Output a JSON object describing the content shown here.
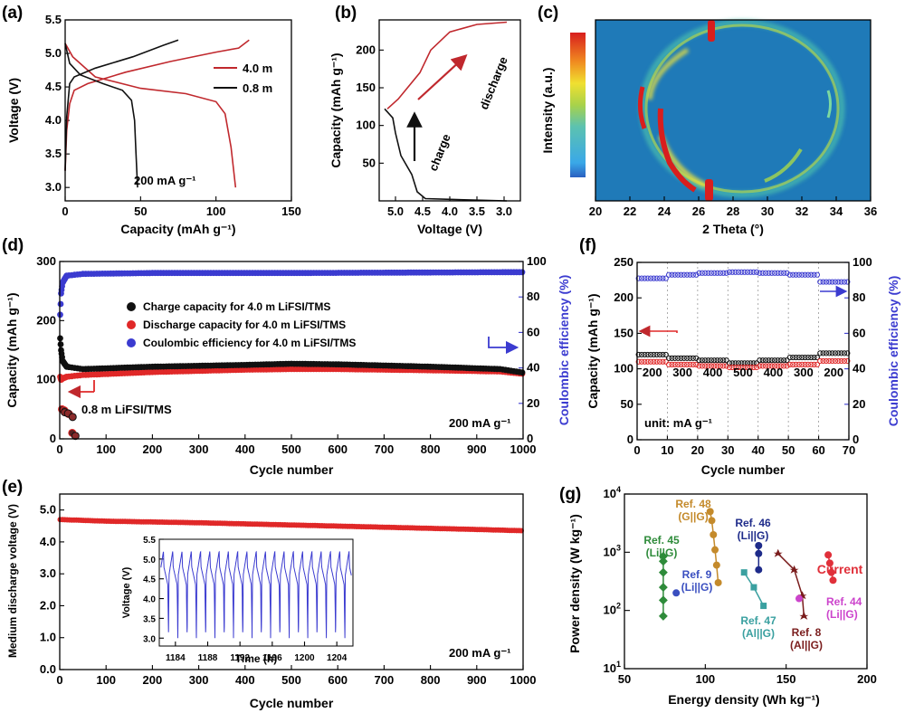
{
  "panels": {
    "a": {
      "label": "(a)",
      "chart_data": {
        "type": "line",
        "xlabel": "Capacity (mAh g⁻¹)",
        "ylabel": "Voltage (V)",
        "xlim": [
          0,
          150
        ],
        "ylim": [
          2.8,
          5.5
        ],
        "xticks": [
          0,
          50,
          100,
          150
        ],
        "yticks": [
          3.0,
          3.5,
          4.0,
          4.5,
          5.0,
          5.5
        ],
        "annotation": "200 mA g⁻¹",
        "series": [
          {
            "name": "4.0 m",
            "color": "#c0282d",
            "charge": [
              [
                0,
                3.25
              ],
              [
                1,
                3.85
              ],
              [
                3,
                4.25
              ],
              [
                6,
                4.45
              ],
              [
                15,
                4.55
              ],
              [
                40,
                4.72
              ],
              [
                70,
                4.88
              ],
              [
                100,
                5.02
              ],
              [
                115,
                5.08
              ],
              [
                122,
                5.2
              ]
            ],
            "discharge": [
              [
                0,
                5.15
              ],
              [
                5,
                4.95
              ],
              [
                20,
                4.65
              ],
              [
                50,
                4.48
              ],
              [
                80,
                4.4
              ],
              [
                100,
                4.28
              ],
              [
                106,
                4.1
              ],
              [
                110,
                3.6
              ],
              [
                113,
                3.0
              ]
            ]
          },
          {
            "name": "0.8 m",
            "color": "#111111",
            "charge": [
              [
                0,
                3.25
              ],
              [
                1,
                4.05
              ],
              [
                3,
                4.55
              ],
              [
                6,
                4.65
              ],
              [
                20,
                4.78
              ],
              [
                45,
                4.95
              ],
              [
                65,
                5.12
              ],
              [
                75,
                5.2
              ]
            ],
            "discharge": [
              [
                0,
                5.15
              ],
              [
                3,
                4.85
              ],
              [
                10,
                4.68
              ],
              [
                25,
                4.55
              ],
              [
                38,
                4.45
              ],
              [
                44,
                4.3
              ],
              [
                46,
                4.0
              ],
              [
                47,
                3.5
              ],
              [
                48,
                3.0
              ]
            ]
          }
        ]
      }
    },
    "b": {
      "label": "(b)",
      "chart_data": {
        "type": "line",
        "xlabel": "Voltage (V)",
        "ylabel": "Capacity (mAh g⁻¹)",
        "xlim": [
          5.3,
          2.7
        ],
        "ylim": [
          0,
          240
        ],
        "xticks": [
          5.0,
          4.5,
          4.0,
          3.5,
          3.0
        ],
        "yticks": [
          50,
          100,
          150,
          200
        ],
        "arrows": [
          "charge",
          "discharge"
        ],
        "series": [
          {
            "name": "charge",
            "color": "#111111",
            "points": [
              [
                2.95,
                0
              ],
              [
                3.5,
                1
              ],
              [
                4.0,
                2
              ],
              [
                4.45,
                3
              ],
              [
                4.6,
                12
              ],
              [
                4.7,
                35
              ],
              [
                4.9,
                60
              ],
              [
                5.0,
                90
              ],
              [
                5.05,
                110
              ],
              [
                5.2,
                122
              ]
            ]
          },
          {
            "name": "discharge",
            "color": "#c0282d",
            "points": [
              [
                5.15,
                122
              ],
              [
                4.95,
                135
              ],
              [
                4.55,
                170
              ],
              [
                4.35,
                200
              ],
              [
                4.0,
                224
              ],
              [
                3.5,
                234
              ],
              [
                2.95,
                237
              ]
            ]
          }
        ]
      }
    },
    "c": {
      "label": "(c)",
      "chart_data": {
        "type": "heatmap",
        "xlabel": "2 Theta (°)",
        "ylabel": "Intensity (a.u.)",
        "xlim": [
          20,
          36
        ],
        "xticks": [
          20,
          22,
          24,
          26,
          28,
          30,
          32,
          34,
          36
        ],
        "ring_center_x": 29.0,
        "peak_positions": [
          22.6,
          23.8,
          26.8,
          34.0
        ]
      }
    },
    "d": {
      "label": "(d)",
      "chart_data": {
        "type": "scatter",
        "xlabel": "Cycle number",
        "ylabel": "Capacity (mAh g⁻¹)",
        "y2label": "Coulombic efficiency (%)",
        "xlim": [
          0,
          1000
        ],
        "ylim": [
          0,
          300
        ],
        "y2lim": [
          0,
          100
        ],
        "xticks": [
          0,
          100,
          200,
          300,
          400,
          500,
          600,
          700,
          800,
          900,
          1000
        ],
        "yticks": [
          0,
          100,
          200,
          300
        ],
        "y2ticks": [
          0,
          20,
          40,
          60,
          80,
          100
        ],
        "legend": [
          "Charge capacity for 4.0 m LiFSI/TMS",
          "Discharge capacity for 4.0 m LiFSI/TMS",
          "Coulombic efficiency for 4.0 m LiFSI/TMS"
        ],
        "annotations": [
          "0.8 m LiFSI/TMS",
          "200 mA g⁻¹"
        ],
        "charge": [
          [
            1,
            170
          ],
          [
            3,
            150
          ],
          [
            6,
            132
          ],
          [
            15,
            122
          ],
          [
            50,
            118
          ],
          [
            200,
            122
          ],
          [
            400,
            125
          ],
          [
            500,
            127
          ],
          [
            600,
            126
          ],
          [
            800,
            122
          ],
          [
            950,
            118
          ],
          [
            1000,
            112
          ]
        ],
        "discharge": [
          [
            1,
            105
          ],
          [
            3,
            100
          ],
          [
            6,
            102
          ],
          [
            15,
            105
          ],
          [
            50,
            108
          ],
          [
            200,
            113
          ],
          [
            400,
            117
          ],
          [
            500,
            118
          ],
          [
            600,
            118
          ],
          [
            800,
            116
          ],
          [
            950,
            114
          ],
          [
            1000,
            110
          ]
        ],
        "ce": [
          [
            1,
            70
          ],
          [
            3,
            82
          ],
          [
            6,
            88
          ],
          [
            15,
            92
          ],
          [
            50,
            93
          ],
          [
            200,
            93.5
          ],
          [
            500,
            93.5
          ],
          [
            800,
            93.8
          ],
          [
            1000,
            94
          ]
        ],
        "low_conc_charge": [
          [
            5,
            50
          ],
          [
            10,
            48
          ],
          [
            20,
            42
          ],
          [
            27,
            10
          ]
        ],
        "low_conc_discharge": [
          [
            5,
            45
          ],
          [
            12,
            43
          ],
          [
            22,
            37
          ],
          [
            28,
            5
          ]
        ]
      }
    },
    "e": {
      "label": "(e)",
      "chart_data": {
        "type": "scatter",
        "xlabel": "Cycle number",
        "ylabel": "Medium discharge voltage (V)",
        "xlim": [
          0,
          1000
        ],
        "ylim": [
          0,
          5.5
        ],
        "xticks": [
          0,
          100,
          200,
          300,
          400,
          500,
          600,
          700,
          800,
          900,
          1000
        ],
        "yticks": [
          0.0,
          1.0,
          2.0,
          3.0,
          4.0,
          5.0
        ],
        "annotation": "200 mA g⁻¹",
        "points": [
          [
            1,
            4.7
          ],
          [
            100,
            4.65
          ],
          [
            300,
            4.6
          ],
          [
            500,
            4.53
          ],
          [
            700,
            4.46
          ],
          [
            900,
            4.39
          ],
          [
            1000,
            4.35
          ]
        ],
        "inset": {
          "xlabel": "Time (h)",
          "ylabel": "Voltage (V)",
          "xlim": [
            1182,
            1206
          ],
          "ylim": [
            2.8,
            5.5
          ],
          "xticks": [
            1184,
            1188,
            1192,
            1196,
            1200,
            1204
          ],
          "yticks": [
            3.0,
            3.5,
            4.0,
            4.5,
            5.0,
            5.5
          ],
          "cycle_period_h": 1.15,
          "v_min": 3.0,
          "v_max": 5.2
        }
      }
    },
    "f": {
      "label": "(f)",
      "chart_data": {
        "type": "scatter",
        "xlabel": "Cycle number",
        "ylabel": "Capacity (mAh g⁻¹)",
        "y2label": "Coulombic efficiency (%)",
        "xlim": [
          0,
          70
        ],
        "ylim": [
          0,
          250
        ],
        "y2lim": [
          0,
          100
        ],
        "xticks": [
          0,
          10,
          20,
          30,
          40,
          50,
          60,
          70
        ],
        "yticks": [
          0,
          50,
          100,
          150,
          200,
          250
        ],
        "y2ticks": [
          0,
          20,
          40,
          60,
          80,
          100
        ],
        "unit_label": "unit: mA g⁻¹",
        "rate_labels": [
          "200",
          "300",
          "400",
          "500",
          "400",
          "300",
          "200"
        ],
        "segments": [
          {
            "x": [
              1,
              10
            ],
            "charge": 120,
            "discharge": 110,
            "ce": 91
          },
          {
            "x": [
              11,
              20
            ],
            "charge": 115,
            "discharge": 106,
            "ce": 93
          },
          {
            "x": [
              21,
              30
            ],
            "charge": 112,
            "discharge": 104,
            "ce": 94
          },
          {
            "x": [
              31,
              40
            ],
            "charge": 108,
            "discharge": 102,
            "ce": 94.5
          },
          {
            "x": [
              41,
              50
            ],
            "charge": 112,
            "discharge": 104,
            "ce": 94
          },
          {
            "x": [
              51,
              60
            ],
            "charge": 116,
            "discharge": 106,
            "ce": 93
          },
          {
            "x": [
              61,
              70
            ],
            "charge": 122,
            "discharge": 111,
            "ce": 89
          }
        ]
      }
    },
    "g": {
      "label": "(g)",
      "chart_data": {
        "type": "scatter",
        "xlabel": "Energy density (Wh kg⁻¹)",
        "ylabel": "Power density (W kg⁻¹)",
        "xlim": [
          50,
          200
        ],
        "ylog": true,
        "ylim": [
          10,
          10000
        ],
        "xticks": [
          50,
          100,
          150,
          200
        ],
        "series": [
          {
            "name": "Ref. 45 (Li||G)",
            "color": "#2e8b3a",
            "points": [
              [
                74,
                850
              ],
              [
                74,
                700
              ],
              [
                74,
                450
              ],
              [
                74,
                250
              ],
              [
                74,
                150
              ],
              [
                74,
                80
              ]
            ]
          },
          {
            "name": "Ref. 9 (Li||G)",
            "color": "#3a4fc0",
            "points": [
              [
                82,
                200
              ]
            ]
          },
          {
            "name": "Ref. 48 (G||G)",
            "color": "#c48a2b",
            "points": [
              [
                103,
                5000
              ],
              [
                104,
                3500
              ],
              [
                105,
                2000
              ],
              [
                106,
                1100
              ],
              [
                107,
                600
              ],
              [
                108,
                300
              ]
            ]
          },
          {
            "name": "Ref. 46 (Li||G)",
            "color": "#1e2b8a",
            "points": [
              [
                133,
                1300
              ],
              [
                133,
                950
              ],
              [
                133,
                500
              ]
            ]
          },
          {
            "name": "Ref. 47 (Al||G)",
            "color": "#3aa0a0",
            "points": [
              [
                124,
                450
              ],
              [
                130,
                250
              ],
              [
                136,
                120
              ]
            ]
          },
          {
            "name": "Ref. 8 (Al||G)",
            "color": "#7a1d1d",
            "points": [
              [
                145,
                950
              ],
              [
                155,
                500
              ],
              [
                160,
                180
              ],
              [
                161,
                80
              ]
            ]
          },
          {
            "name": "Ref. 44 (Li||G)",
            "color": "#cc44cc",
            "points": [
              [
                158,
                160
              ]
            ]
          },
          {
            "name": "Current",
            "color": "#e0303a",
            "points": [
              [
                176,
                900
              ],
              [
                177,
                650
              ],
              [
                178,
                450
              ],
              [
                179,
                330
              ]
            ]
          }
        ]
      }
    }
  }
}
